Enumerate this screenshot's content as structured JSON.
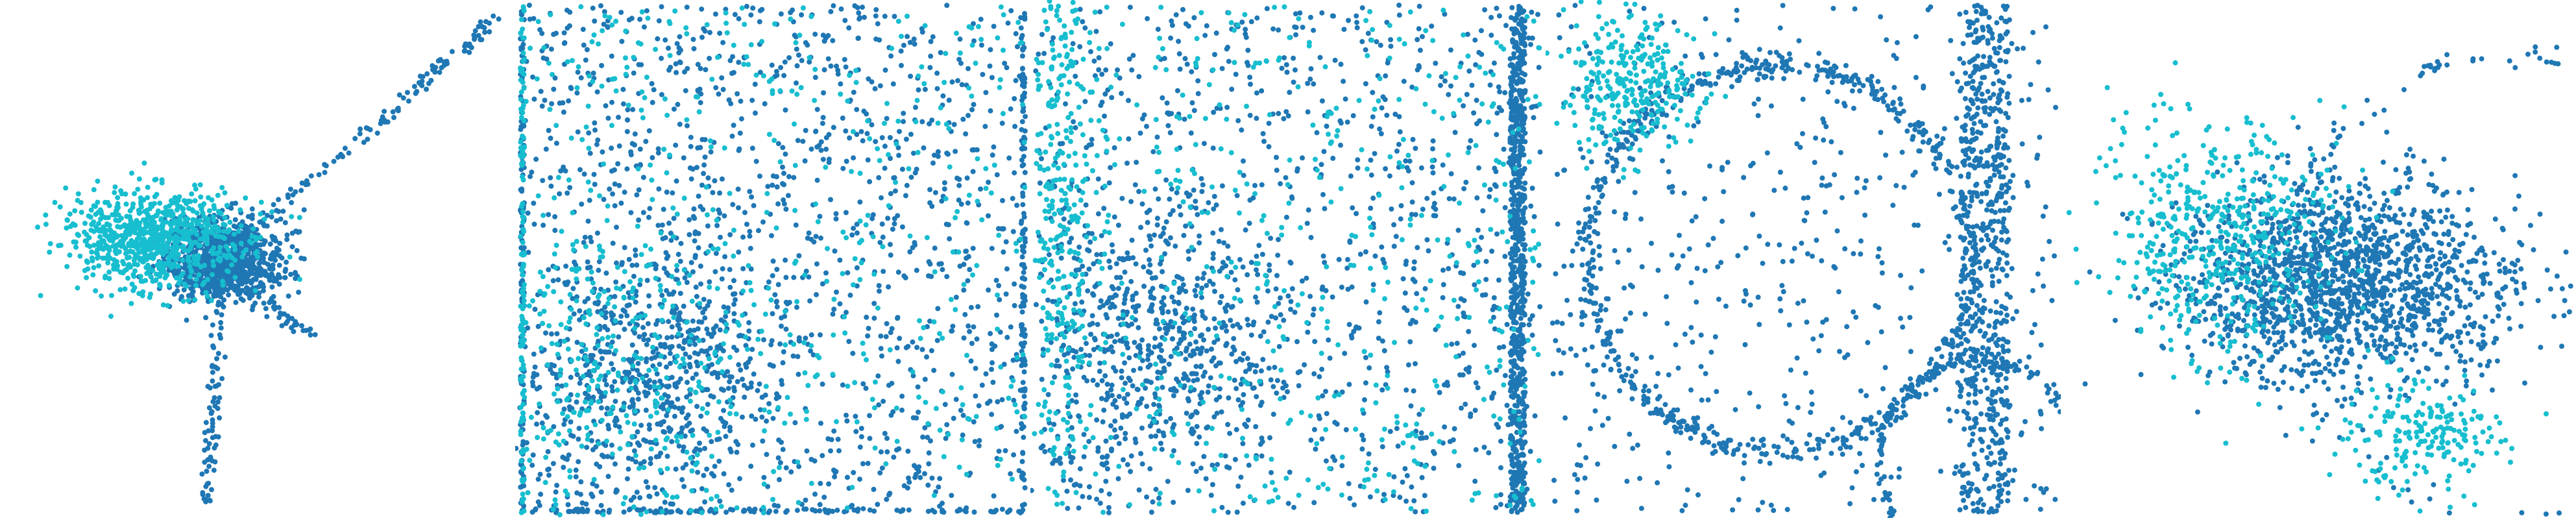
{
  "colors": {
    "series_a": "#1f77b4",
    "series_b": "#17becf"
  },
  "chart_data": [
    {
      "type": "scatter",
      "panel": 1,
      "xlim": [
        -4,
        6
      ],
      "ylim": [
        -5,
        5
      ],
      "axes_visible": false,
      "grid": false,
      "series": [
        {
          "color": "#1f77b4",
          "approx_points": 1500,
          "clusters": [
            {
              "cx": 0.3,
              "cy": 0.0,
              "sx": 0.6,
              "sy": 0.4,
              "n": 900
            }
          ],
          "arms": [
            {
              "from": [
                0.3,
                0.0
              ],
              "to": [
                5.8,
                4.8
              ],
              "n": 120
            },
            {
              "from": [
                0.3,
                0.0
              ],
              "to": [
                0.0,
                -4.8
              ],
              "n": 80
            },
            {
              "from": [
                0.3,
                0.0
              ],
              "to": [
                2.0,
                -1.5
              ],
              "n": 60
            }
          ]
        },
        {
          "color": "#17becf",
          "approx_points": 900,
          "clusters": [
            {
              "cx": -1.0,
              "cy": 0.4,
              "sx": 0.9,
              "sy": 0.5,
              "n": 800
            }
          ]
        }
      ]
    },
    {
      "type": "scatter",
      "panel": 2,
      "xlim": [
        0,
        1
      ],
      "ylim": [
        0,
        1
      ],
      "axes_visible": false,
      "grid": false,
      "series": [
        {
          "color": "#1f77b4",
          "approx_points": 1800,
          "distribution": "uniform-plus-cluster",
          "clusters": [
            {
              "cx": 0.25,
              "cy": 0.28,
              "sx": 0.12,
              "sy": 0.12,
              "n": 500
            }
          ],
          "edges": [
            "left",
            "bottom",
            "right"
          ]
        },
        {
          "color": "#17becf",
          "approx_points": 700,
          "distribution": "uniform-plus-cluster",
          "clusters": [
            {
              "cx": 0.2,
              "cy": 0.3,
              "sx": 0.14,
              "sy": 0.14,
              "n": 250
            }
          ],
          "edges": [
            "left"
          ]
        }
      ]
    },
    {
      "type": "scatter",
      "panel": 3,
      "xlim": [
        0,
        1
      ],
      "ylim": [
        0,
        1
      ],
      "axes_visible": false,
      "grid": false,
      "series": [
        {
          "color": "#1f77b4",
          "approx_points": 2200,
          "distribution": "uniform-plus-cluster",
          "clusters": [
            {
              "cx": 0.25,
              "cy": 0.35,
              "sx": 0.12,
              "sy": 0.12,
              "n": 500
            }
          ],
          "bands": [
            {
              "x": 0.955,
              "width": 0.03,
              "n": 700
            }
          ]
        },
        {
          "color": "#17becf",
          "approx_points": 800,
          "distribution": "uniform-plus-cluster",
          "clusters": [
            {
              "cx": 0.05,
              "cy": 0.6,
              "sx": 0.03,
              "sy": 0.3,
              "n": 300
            }
          ]
        }
      ]
    },
    {
      "type": "scatter",
      "panel": 4,
      "xlim": [
        0,
        1
      ],
      "ylim": [
        0,
        1
      ],
      "axes_visible": false,
      "grid": false,
      "series": [
        {
          "color": "#1f77b4",
          "approx_points": 2000,
          "distribution": "rings",
          "rings": [
            {
              "cx": 0.45,
              "cy": 0.5,
              "r": 0.38,
              "n": 600
            },
            {
              "cx": 0.85,
              "cy": 0.1,
              "r": 0.2,
              "n": 250
            }
          ],
          "bands": [
            {
              "x": 0.86,
              "width": 0.1,
              "n": 600
            }
          ]
        },
        {
          "color": "#17becf",
          "approx_points": 600,
          "clusters": [
            {
              "cx": 0.15,
              "cy": 0.85,
              "sx": 0.07,
              "sy": 0.07,
              "n": 300
            }
          ]
        }
      ]
    },
    {
      "type": "scatter",
      "panel": 5,
      "xlim": [
        0,
        1
      ],
      "ylim": [
        0,
        1
      ],
      "axes_visible": false,
      "grid": false,
      "series": [
        {
          "color": "#1f77b4",
          "approx_points": 2200,
          "clusters": [
            {
              "cx": 0.55,
              "cy": 0.45,
              "sx": 0.16,
              "sy": 0.1,
              "n": 1600
            }
          ],
          "rings": [
            {
              "cx": 0.88,
              "cy": 0.45,
              "r": 0.45,
              "n": 150
            }
          ]
        },
        {
          "color": "#17becf",
          "approx_points": 900,
          "clusters": [
            {
              "cx": 0.3,
              "cy": 0.55,
              "sx": 0.12,
              "sy": 0.12,
              "n": 500
            },
            {
              "cx": 0.7,
              "cy": 0.15,
              "sx": 0.08,
              "sy": 0.06,
              "n": 200
            }
          ]
        }
      ]
    }
  ]
}
